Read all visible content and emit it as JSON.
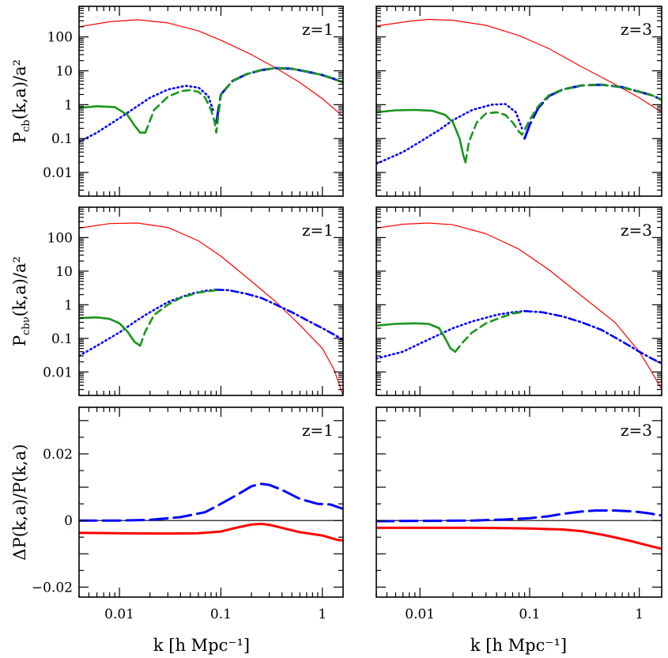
{
  "chart_data": {
    "type": "line",
    "xscale": "log",
    "xlim": [
      0.004,
      1.6
    ],
    "x_ticks": [
      "0.01",
      "0.1",
      "1"
    ],
    "xlabel": "k [h Mpc⁻¹]",
    "rows": [
      {
        "ylabel_main": "P",
        "ylabel_sub": "cb",
        "ylabel_rest": "(k,a)/a²",
        "yscale": "log",
        "ylim": [
          0.002,
          800
        ],
        "y_ticks": [
          "0.01",
          "0.1",
          "1",
          "10",
          "100"
        ]
      },
      {
        "ylabel_main": "P",
        "ylabel_sub": "cbν",
        "ylabel_rest": "(k,a)/a²",
        "yscale": "log",
        "ylim": [
          0.002,
          800
        ],
        "y_ticks": [
          "0.01",
          "0.1",
          "1",
          "10",
          "100"
        ]
      },
      {
        "ylabel_main": "ΔP(k,a)/P(k,a)",
        "ylabel_sub": "",
        "ylabel_rest": "",
        "yscale": "linear",
        "ylim": [
          -0.023,
          0.034
        ],
        "y_ticks": [
          "−0.02",
          "0",
          "0.02"
        ]
      }
    ],
    "columns": [
      {
        "redshift_label": "z=1"
      },
      {
        "redshift_label": "z=3"
      }
    ],
    "panels": [
      {
        "row": 0,
        "col": 0,
        "series": [
          {
            "color": "#ff0000",
            "style": "solid-thin",
            "x": [
              0.004,
              0.008,
              0.015,
              0.03,
              0.06,
              0.1,
              0.2,
              0.35,
              0.6,
              1.0,
              1.6
            ],
            "y": [
              200,
              280,
              320,
              260,
              150,
              80,
              30,
              12,
              4.5,
              1.5,
              0.45
            ]
          },
          {
            "color": "#0000ff",
            "style": "dotted",
            "x": [
              0.004,
              0.006,
              0.01,
              0.015,
              0.02,
              0.03,
              0.045,
              0.06,
              0.075,
              0.085
            ],
            "y": [
              0.08,
              0.15,
              0.4,
              0.9,
              1.6,
              2.8,
              3.6,
              3.2,
              1.8,
              0.6
            ]
          },
          {
            "color": "#0000ff",
            "style": "longdash",
            "x": [
              0.09,
              0.1,
              0.13,
              0.18,
              0.25,
              0.35,
              0.5,
              0.7,
              1.0,
              1.3,
              1.6
            ],
            "y": [
              0.3,
              2.0,
              5.0,
              8.0,
              10.5,
              12,
              11.5,
              9.5,
              7.5,
              5.8,
              4.5
            ]
          },
          {
            "color": "#1a961a",
            "style": "solid",
            "x": [
              0.004,
              0.006,
              0.009,
              0.012,
              0.014,
              0.016,
              0.018
            ],
            "y": [
              0.8,
              0.9,
              0.85,
              0.5,
              0.25,
              0.15,
              0.15
            ]
          },
          {
            "color": "#1a961a",
            "style": "dash",
            "x": [
              0.018,
              0.022,
              0.03,
              0.04,
              0.05,
              0.06,
              0.07,
              0.08,
              0.087,
              0.09,
              0.1,
              0.13,
              0.18,
              0.25,
              0.35,
              0.5,
              0.7,
              1.0,
              1.3,
              1.6
            ],
            "y": [
              0.15,
              0.7,
              1.7,
              2.5,
              2.7,
              2.4,
              1.6,
              0.7,
              0.3,
              0.15,
              2.0,
              5.0,
              8.0,
              10.5,
              12,
              11.5,
              9.5,
              7.5,
              5.8,
              4.5
            ]
          }
        ]
      },
      {
        "row": 0,
        "col": 1,
        "series": [
          {
            "color": "#ff0000",
            "style": "solid-thin",
            "x": [
              0.004,
              0.008,
              0.012,
              0.02,
              0.04,
              0.08,
              0.15,
              0.3,
              0.6,
              1.0,
              1.6
            ],
            "y": [
              210,
              290,
              330,
              310,
              220,
              110,
              45,
              13,
              4,
              1.6,
              0.6
            ]
          },
          {
            "color": "#0000ff",
            "style": "dotted",
            "x": [
              0.004,
              0.007,
              0.01,
              0.015,
              0.02,
              0.03,
              0.045,
              0.06,
              0.075,
              0.085
            ],
            "y": [
              0.018,
              0.04,
              0.08,
              0.18,
              0.35,
              0.7,
              1.0,
              1.05,
              0.6,
              0.2
            ]
          },
          {
            "color": "#0000ff",
            "style": "longdash",
            "x": [
              0.09,
              0.1,
              0.12,
              0.15,
              0.2,
              0.3,
              0.45,
              0.7,
              1.0,
              1.3,
              1.6
            ],
            "y": [
              0.1,
              0.25,
              0.8,
              1.8,
              2.8,
              3.7,
              3.9,
              3.3,
              2.4,
              1.9,
              1.4
            ]
          },
          {
            "color": "#1a961a",
            "style": "solid",
            "x": [
              0.004,
              0.006,
              0.009,
              0.013,
              0.017,
              0.02,
              0.023,
              0.025,
              0.026
            ],
            "y": [
              0.6,
              0.68,
              0.7,
              0.66,
              0.5,
              0.3,
              0.1,
              0.03,
              0.02
            ]
          },
          {
            "color": "#1a961a",
            "style": "dash",
            "x": [
              0.026,
              0.028,
              0.033,
              0.04,
              0.05,
              0.06,
              0.07,
              0.08,
              0.085,
              0.09,
              0.1,
              0.12,
              0.15,
              0.2,
              0.3,
              0.45,
              0.7,
              1.0,
              1.3,
              1.6
            ],
            "y": [
              0.02,
              0.08,
              0.3,
              0.55,
              0.6,
              0.5,
              0.3,
              0.16,
              0.13,
              0.18,
              0.35,
              0.9,
              1.9,
              2.8,
              3.7,
              3.9,
              3.3,
              2.4,
              1.9,
              1.4
            ]
          }
        ]
      },
      {
        "row": 1,
        "col": 0,
        "series": [
          {
            "color": "#ff0000",
            "style": "solid-thin",
            "x": [
              0.004,
              0.008,
              0.015,
              0.03,
              0.06,
              0.1,
              0.2,
              0.35,
              0.6,
              1.0,
              1.3,
              1.6
            ],
            "y": [
              190,
              260,
              270,
              200,
              80,
              28,
              5,
              1.2,
              0.25,
              0.05,
              0.012,
              0.002
            ]
          },
          {
            "color": "#0000ff",
            "style": "dotted",
            "x": [
              0.004,
              0.006,
              0.01,
              0.015,
              0.02,
              0.03,
              0.05,
              0.07,
              0.09
            ],
            "y": [
              0.03,
              0.06,
              0.15,
              0.35,
              0.6,
              1.2,
              2.1,
              2.6,
              2.8
            ]
          },
          {
            "color": "#0000ff",
            "style": "dashdot",
            "x": [
              0.09,
              0.12,
              0.18,
              0.25,
              0.35,
              0.5,
              0.7,
              1.0,
              1.3,
              1.6
            ],
            "y": [
              2.8,
              2.7,
              2.1,
              1.6,
              1.0,
              0.6,
              0.35,
              0.2,
              0.13,
              0.09
            ]
          },
          {
            "color": "#1a961a",
            "style": "solid",
            "x": [
              0.004,
              0.006,
              0.008,
              0.01,
              0.012,
              0.014,
              0.016
            ],
            "y": [
              0.4,
              0.42,
              0.38,
              0.28,
              0.16,
              0.08,
              0.06
            ]
          },
          {
            "color": "#1a961a",
            "style": "dash",
            "x": [
              0.016,
              0.018,
              0.022,
              0.03,
              0.04,
              0.06,
              0.09
            ],
            "y": [
              0.06,
              0.16,
              0.5,
              1.0,
              1.6,
              2.3,
              2.7
            ]
          }
        ]
      },
      {
        "row": 1,
        "col": 1,
        "series": [
          {
            "color": "#ff0000",
            "style": "solid-thin",
            "x": [
              0.004,
              0.007,
              0.012,
              0.02,
              0.04,
              0.08,
              0.15,
              0.3,
              0.6,
              1.0,
              1.3,
              1.6
            ],
            "y": [
              190,
              250,
              270,
              240,
              130,
              45,
              11,
              1.8,
              0.3,
              0.04,
              0.01,
              0.003
            ]
          },
          {
            "color": "#0000ff",
            "style": "dotted",
            "x": [
              0.004,
              0.007,
              0.01,
              0.015,
              0.02,
              0.03,
              0.05,
              0.07,
              0.09
            ],
            "y": [
              0.025,
              0.04,
              0.07,
              0.13,
              0.2,
              0.32,
              0.5,
              0.6,
              0.65
            ]
          },
          {
            "color": "#0000ff",
            "style": "dashdot",
            "x": [
              0.09,
              0.13,
              0.2,
              0.3,
              0.45,
              0.7,
              1.0,
              1.3,
              1.6
            ],
            "y": [
              0.65,
              0.6,
              0.45,
              0.3,
              0.18,
              0.08,
              0.04,
              0.025,
              0.018
            ]
          },
          {
            "color": "#1a961a",
            "style": "solid",
            "x": [
              0.004,
              0.006,
              0.009,
              0.012,
              0.015,
              0.017,
              0.019,
              0.021
            ],
            "y": [
              0.24,
              0.27,
              0.28,
              0.27,
              0.2,
              0.1,
              0.05,
              0.04
            ]
          },
          {
            "color": "#1a961a",
            "style": "dash",
            "x": [
              0.021,
              0.024,
              0.03,
              0.04,
              0.055,
              0.07,
              0.09
            ],
            "y": [
              0.04,
              0.07,
              0.15,
              0.28,
              0.42,
              0.55,
              0.62
            ]
          }
        ]
      },
      {
        "row": 2,
        "col": 0,
        "series": [
          {
            "color": "#000000",
            "style": "solid-thin",
            "x": [
              0.004,
              1.6
            ],
            "y": [
              0,
              0
            ]
          },
          {
            "color": "#0000ff",
            "style": "longdash-thick",
            "x": [
              0.004,
              0.01,
              0.02,
              0.04,
              0.07,
              0.1,
              0.15,
              0.2,
              0.25,
              0.3,
              0.4,
              0.6,
              0.9,
              1.2,
              1.6
            ],
            "y": [
              0,
              0,
              0.0002,
              0.001,
              0.0025,
              0.005,
              0.008,
              0.0103,
              0.011,
              0.0107,
              0.0092,
              0.0065,
              0.005,
              0.0048,
              0.0035
            ]
          },
          {
            "color": "#ff0000",
            "style": "solid-thick",
            "x": [
              0.004,
              0.01,
              0.03,
              0.06,
              0.1,
              0.15,
              0.2,
              0.25,
              0.3,
              0.4,
              0.6,
              1.0,
              1.4,
              1.6
            ],
            "y": [
              -0.0037,
              -0.0038,
              -0.0039,
              -0.0038,
              -0.0033,
              -0.002,
              -0.0012,
              -0.001,
              -0.0013,
              -0.0022,
              -0.0035,
              -0.0045,
              -0.0058,
              -0.006
            ]
          }
        ]
      },
      {
        "row": 2,
        "col": 1,
        "series": [
          {
            "color": "#000000",
            "style": "solid-thin",
            "x": [
              0.004,
              1.6
            ],
            "y": [
              0,
              0
            ]
          },
          {
            "color": "#0000ff",
            "style": "longdash-thick",
            "x": [
              0.004,
              0.01,
              0.03,
              0.06,
              0.1,
              0.15,
              0.2,
              0.3,
              0.4,
              0.6,
              0.9,
              1.2,
              1.6
            ],
            "y": [
              -0.0002,
              -0.0001,
              0,
              0.0003,
              0.0007,
              0.0013,
              0.002,
              0.0027,
              0.003,
              0.003,
              0.0027,
              0.0022,
              0.0015
            ]
          },
          {
            "color": "#ff0000",
            "style": "solid-thick",
            "x": [
              0.004,
              0.01,
              0.03,
              0.06,
              0.1,
              0.2,
              0.3,
              0.5,
              0.8,
              1.2,
              1.6
            ],
            "y": [
              -0.0022,
              -0.0022,
              -0.0022,
              -0.0023,
              -0.0024,
              -0.0027,
              -0.0032,
              -0.0045,
              -0.006,
              -0.0075,
              -0.0085
            ]
          }
        ]
      }
    ]
  }
}
